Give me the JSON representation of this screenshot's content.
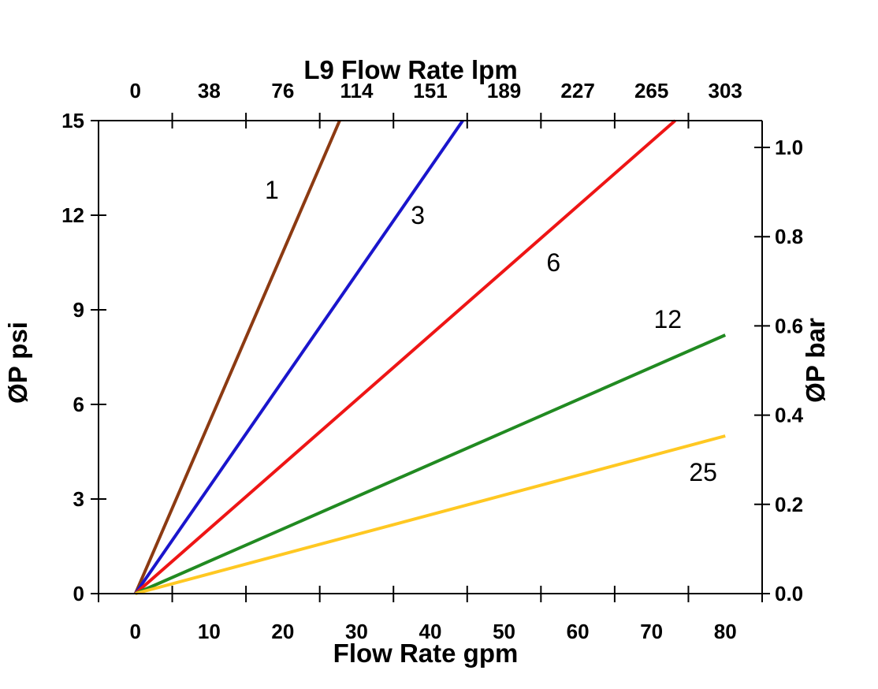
{
  "chart_data": {
    "type": "line",
    "title": "L9 Flow Rate lpm",
    "top_axis": {
      "title": "L9 Flow Rate lpm",
      "unit": "lpm",
      "tick_labels": [
        "0",
        "38",
        "76",
        "114",
        "151",
        "189",
        "227",
        "265",
        "303"
      ]
    },
    "bottom_axis": {
      "title": "Flow Rate gpm",
      "unit": "gpm",
      "tick_values": [
        0,
        10,
        20,
        30,
        40,
        50,
        60,
        70,
        80
      ],
      "minor_tick_values": [
        5,
        15,
        25,
        35,
        45,
        55,
        65,
        75
      ],
      "range_gpm": [
        -5,
        85
      ]
    },
    "left_axis": {
      "title": "ØP psi",
      "unit": "psi",
      "tick_values": [
        0,
        3,
        6,
        9,
        12,
        15
      ],
      "range_psi": [
        0,
        15
      ]
    },
    "right_axis": {
      "title": "ØP bar",
      "unit": "bar",
      "tick_labels": [
        "0.0",
        "0.2",
        "0.4",
        "0.6",
        "0.8",
        "1.0"
      ],
      "psi_per_bar": 14.15
    },
    "series": [
      {
        "label": "1",
        "color": "#8C3A12",
        "points_gpm_psi": [
          [
            0,
            0
          ],
          [
            27.7,
            15
          ]
        ],
        "label_at_gpm_psi": [
          18.5,
          12.8
        ]
      },
      {
        "label": "3",
        "color": "#1A15CC",
        "points_gpm_psi": [
          [
            0,
            0
          ],
          [
            44.4,
            15
          ]
        ],
        "label_at_gpm_psi": [
          38.3,
          12.0
        ]
      },
      {
        "label": "6",
        "color": "#EE1515",
        "points_gpm_psi": [
          [
            0,
            0
          ],
          [
            73.2,
            15
          ]
        ],
        "label_at_gpm_psi": [
          56.7,
          10.5
        ]
      },
      {
        "label": "12",
        "color": "#218A21",
        "points_gpm_psi": [
          [
            0,
            0
          ],
          [
            80,
            8.2
          ]
        ],
        "label_at_gpm_psi": [
          72.2,
          8.7
        ]
      },
      {
        "label": "25",
        "color": "#FFC822",
        "points_gpm_psi": [
          [
            0,
            0
          ],
          [
            80,
            5.0
          ]
        ],
        "label_at_gpm_psi": [
          77.0,
          3.85
        ]
      }
    ],
    "grid": false,
    "legend": "inline-labels"
  }
}
